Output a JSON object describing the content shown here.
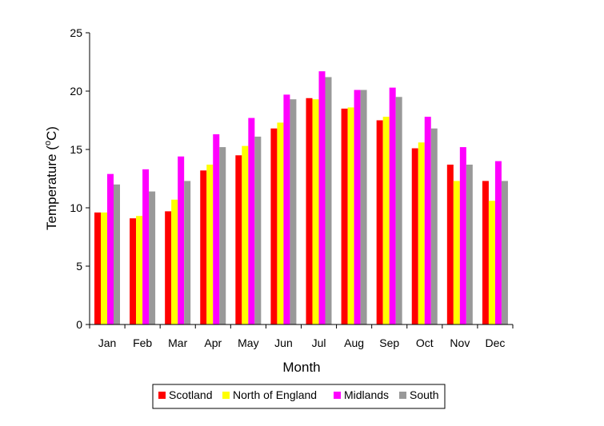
{
  "chart_data": {
    "type": "bar",
    "title": "",
    "xlabel": "Month",
    "ylabel_main": "Temperature (",
    "ylabel_sup": "o",
    "ylabel_tail": "C)",
    "ylim": [
      0,
      25
    ],
    "yticks": [
      0,
      5,
      10,
      15,
      20,
      25
    ],
    "grid": false,
    "legend": "bottom",
    "categories": [
      "Jan",
      "Feb",
      "Mar",
      "Apr",
      "May",
      "Jun",
      "Jul",
      "Aug",
      "Sep",
      "Oct",
      "Nov",
      "Dec"
    ],
    "series": [
      {
        "name": "Scotland",
        "color": "#ff0000",
        "values": [
          9.6,
          9.1,
          9.7,
          13.2,
          14.5,
          16.8,
          19.4,
          18.5,
          17.5,
          15.1,
          13.7,
          12.3
        ]
      },
      {
        "name": "North of England",
        "color": "#ffff00",
        "values": [
          9.6,
          9.3,
          10.7,
          13.7,
          15.3,
          17.3,
          19.3,
          18.6,
          17.8,
          15.6,
          12.3,
          10.6
        ]
      },
      {
        "name": "Midlands",
        "color": "#ff00ff",
        "values": [
          12.9,
          13.3,
          14.4,
          16.3,
          17.7,
          19.7,
          21.7,
          20.1,
          20.3,
          17.8,
          15.2,
          14.0
        ]
      },
      {
        "name": "South",
        "color": "#999999",
        "values": [
          12.0,
          11.4,
          12.3,
          15.2,
          16.1,
          19.3,
          21.2,
          20.1,
          19.5,
          16.8,
          13.7,
          12.3
        ]
      }
    ]
  }
}
